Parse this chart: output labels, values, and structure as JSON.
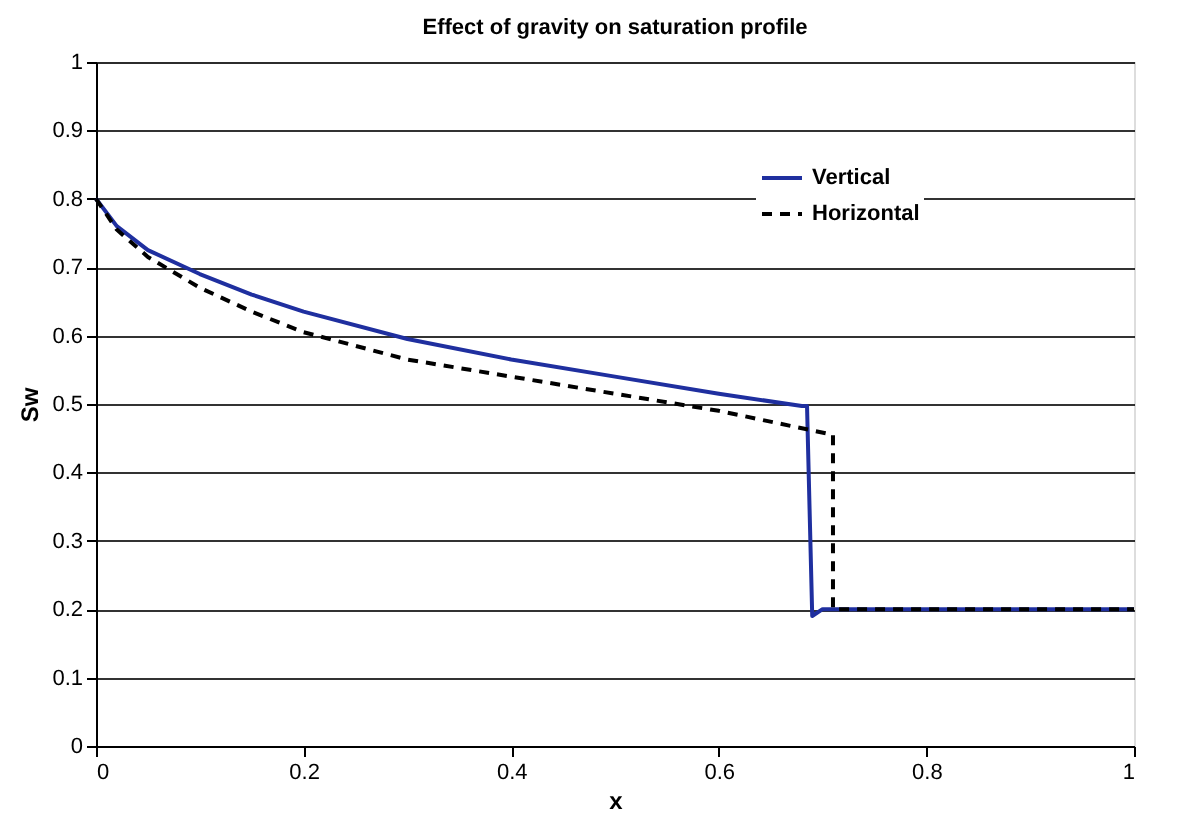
{
  "chart_data": {
    "type": "line",
    "title": "Effect of gravity on saturation profile",
    "xlabel": "x",
    "ylabel": "Sw",
    "xlim": [
      0,
      1
    ],
    "xticks": [
      0,
      0.2,
      0.4,
      0.6,
      0.8,
      1
    ],
    "ylim": [
      0,
      1
    ],
    "yticks": [
      0,
      0.1,
      0.2,
      0.3,
      0.4,
      0.5,
      0.6,
      0.7,
      0.8,
      0.9,
      1
    ],
    "grid": "y",
    "legend": "top right",
    "series": [
      {
        "name": "Vertical",
        "color": "#1f2f9f",
        "line_style": "solid",
        "x": [
          0,
          0.02,
          0.05,
          0.1,
          0.15,
          0.2,
          0.3,
          0.4,
          0.5,
          0.6,
          0.68,
          0.685,
          0.69,
          0.7,
          1
        ],
        "values": [
          0.8,
          0.76,
          0.725,
          0.69,
          0.66,
          0.635,
          0.595,
          0.565,
          0.54,
          0.515,
          0.497,
          0.497,
          0.19,
          0.2,
          0.2
        ]
      },
      {
        "name": "Horizontal",
        "color": "#000000",
        "line_style": "dashed",
        "x": [
          0,
          0.02,
          0.05,
          0.1,
          0.15,
          0.2,
          0.3,
          0.4,
          0.5,
          0.6,
          0.71,
          0.71,
          1
        ],
        "values": [
          0.8,
          0.755,
          0.715,
          0.67,
          0.635,
          0.605,
          0.565,
          0.54,
          0.515,
          0.49,
          0.455,
          0.2,
          0.2
        ]
      }
    ]
  }
}
